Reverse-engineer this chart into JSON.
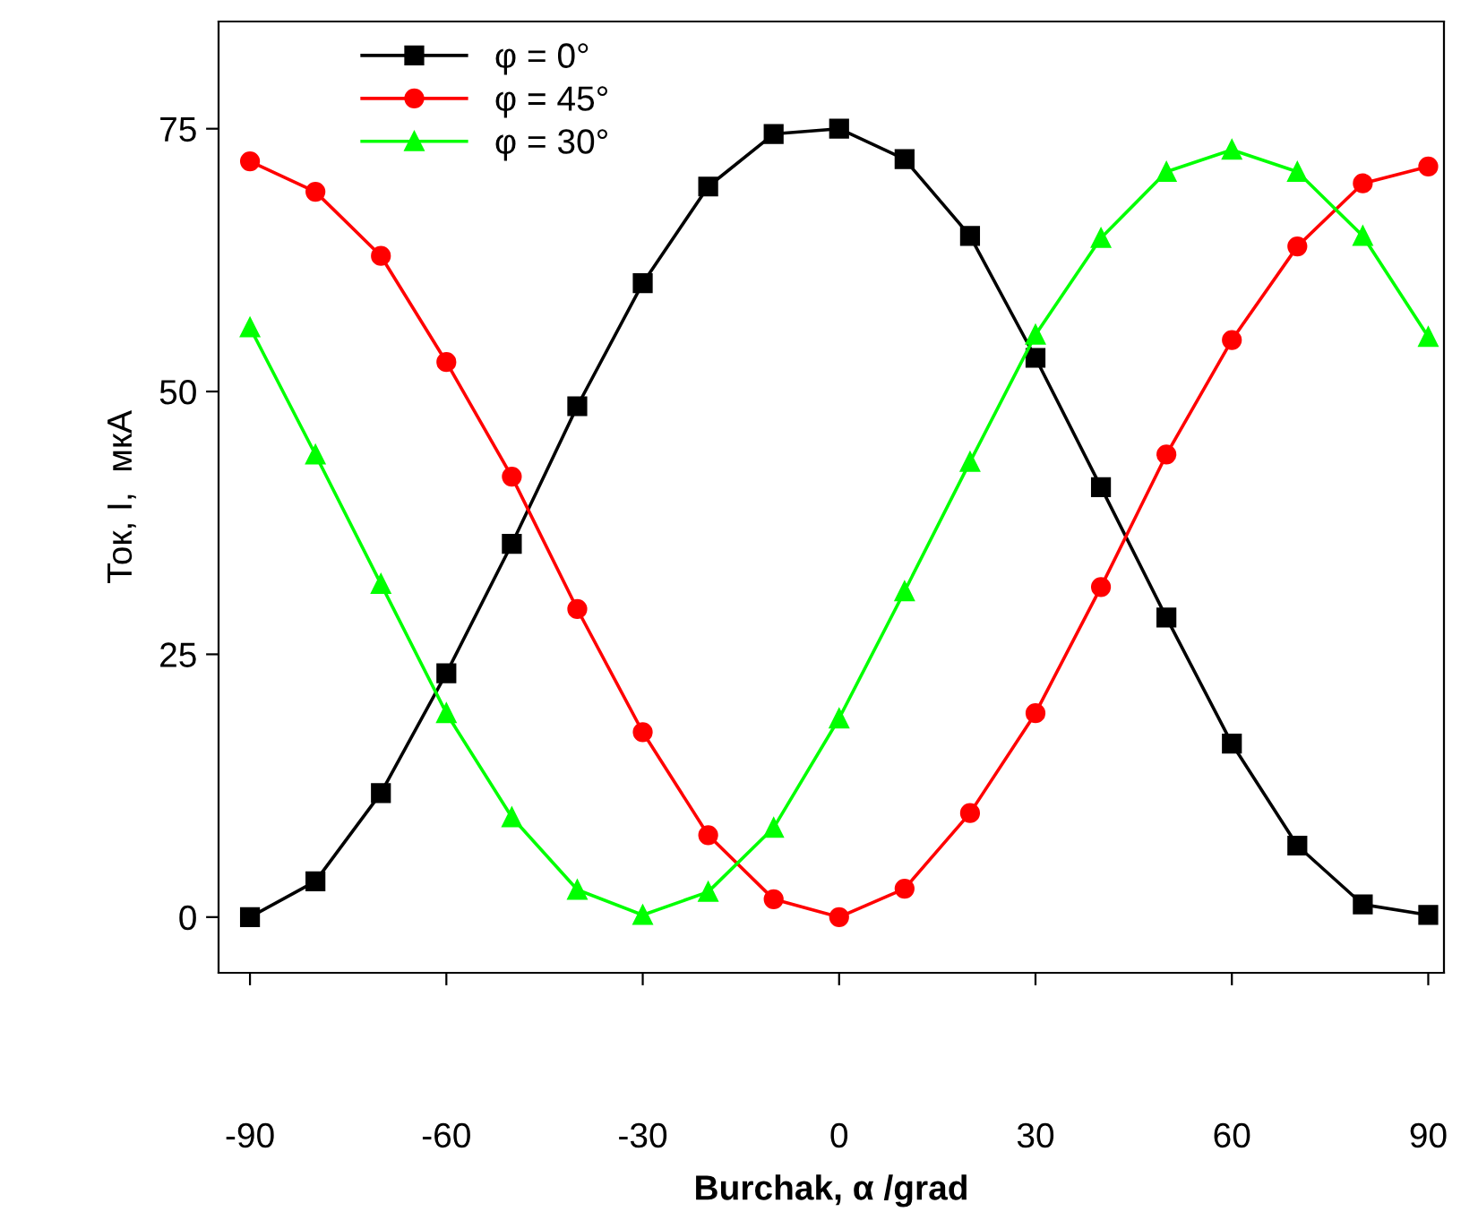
{
  "chart_data": {
    "type": "line",
    "xlabel": "Burchak, α /grad",
    "ylabel": "Ток, I,  мкА",
    "x": [
      -90,
      -80,
      -70,
      -60,
      -50,
      -40,
      -30,
      -20,
      -10,
      0,
      10,
      20,
      30,
      40,
      50,
      60,
      70,
      80,
      90
    ],
    "series": [
      {
        "name": "φ = 0°",
        "color": "#000000",
        "marker": "square",
        "values": [
          0,
          3.4,
          11.8,
          23.2,
          35.5,
          48.6,
          60.3,
          69.5,
          74.5,
          75,
          72.1,
          64.8,
          53.2,
          40.9,
          28.5,
          16.5,
          6.8,
          1.2,
          0.2
        ]
      },
      {
        "name": "φ = 45°",
        "color": "#ff0000",
        "marker": "circle",
        "values": [
          71.9,
          69,
          62.9,
          52.8,
          41.9,
          29.3,
          17.6,
          7.8,
          1.7,
          0,
          2.7,
          9.9,
          19.4,
          31.4,
          44,
          54.9,
          63.8,
          69.8,
          71.4
        ]
      },
      {
        "name": "φ = 30°",
        "color": "#00ff00",
        "marker": "triangle",
        "values": [
          56.1,
          44,
          31.7,
          19.4,
          9.5,
          2.6,
          0.2,
          2.4,
          8.5,
          18.9,
          31,
          43.3,
          55.4,
          64.6,
          70.9,
          73,
          70.9,
          64.8,
          55.2
        ]
      }
    ],
    "xlim": [
      -94.8,
      92.4
    ],
    "ylim": [
      -5.3,
      85.2
    ],
    "xticks": [
      -90,
      -60,
      -30,
      0,
      30,
      60,
      90
    ],
    "yticks": [
      0,
      25,
      50,
      75
    ],
    "grid": false,
    "legend": "top left"
  }
}
